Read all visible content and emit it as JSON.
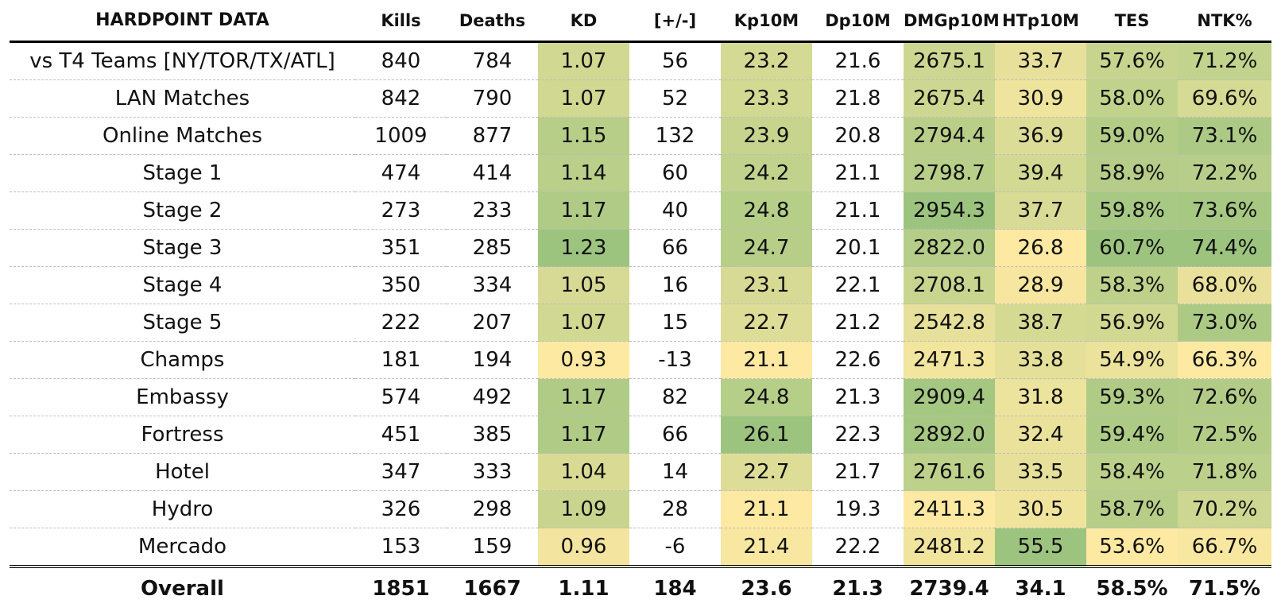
{
  "chart_data": {
    "type": "table",
    "title": "HARDPOINT DATA",
    "columns": [
      "Kills",
      "Deaths",
      "KD",
      "[+/-]",
      "Kp10M",
      "Dp10M",
      "DMGp10M",
      "HTp10M",
      "TES",
      "NTK%"
    ],
    "heatmap_columns": [
      "KD",
      "Kp10M",
      "DMGp10M",
      "HTp10M",
      "TES",
      "NTK%"
    ],
    "color_scale": {
      "low": "#fde9a2",
      "high": "#9cc47f"
    },
    "rows": [
      {
        "label": "vs T4 Teams [NY/TOR/TX/ATL]",
        "values": [
          "840",
          "784",
          "1.07",
          "56",
          "23.2",
          "21.6",
          "2675.1",
          "33.7",
          "57.6%",
          "71.2%"
        ]
      },
      {
        "label": "LAN Matches",
        "values": [
          "842",
          "790",
          "1.07",
          "52",
          "23.3",
          "21.8",
          "2675.4",
          "30.9",
          "58.0%",
          "69.6%"
        ]
      },
      {
        "label": "Online Matches",
        "values": [
          "1009",
          "877",
          "1.15",
          "132",
          "23.9",
          "20.8",
          "2794.4",
          "36.9",
          "59.0%",
          "73.1%"
        ]
      },
      {
        "label": "Stage 1",
        "values": [
          "474",
          "414",
          "1.14",
          "60",
          "24.2",
          "21.1",
          "2798.7",
          "39.4",
          "58.9%",
          "72.2%"
        ]
      },
      {
        "label": "Stage 2",
        "values": [
          "273",
          "233",
          "1.17",
          "40",
          "24.8",
          "21.1",
          "2954.3",
          "37.7",
          "59.8%",
          "73.6%"
        ]
      },
      {
        "label": "Stage 3",
        "values": [
          "351",
          "285",
          "1.23",
          "66",
          "24.7",
          "20.1",
          "2822.0",
          "26.8",
          "60.7%",
          "74.4%"
        ]
      },
      {
        "label": "Stage 4",
        "values": [
          "350",
          "334",
          "1.05",
          "16",
          "23.1",
          "22.1",
          "2708.1",
          "28.9",
          "58.3%",
          "68.0%"
        ]
      },
      {
        "label": "Stage 5",
        "values": [
          "222",
          "207",
          "1.07",
          "15",
          "22.7",
          "21.2",
          "2542.8",
          "38.7",
          "56.9%",
          "73.0%"
        ]
      },
      {
        "label": "Champs",
        "values": [
          "181",
          "194",
          "0.93",
          "-13",
          "21.1",
          "22.6",
          "2471.3",
          "33.8",
          "54.9%",
          "66.3%"
        ]
      },
      {
        "label": "Embassy",
        "values": [
          "574",
          "492",
          "1.17",
          "82",
          "24.8",
          "21.3",
          "2909.4",
          "31.8",
          "59.3%",
          "72.6%"
        ]
      },
      {
        "label": "Fortress",
        "values": [
          "451",
          "385",
          "1.17",
          "66",
          "26.1",
          "22.3",
          "2892.0",
          "32.4",
          "59.4%",
          "72.5%"
        ]
      },
      {
        "label": "Hotel",
        "values": [
          "347",
          "333",
          "1.04",
          "14",
          "22.7",
          "21.7",
          "2761.6",
          "33.5",
          "58.4%",
          "71.8%"
        ]
      },
      {
        "label": "Hydro",
        "values": [
          "326",
          "298",
          "1.09",
          "28",
          "21.1",
          "19.3",
          "2411.3",
          "30.5",
          "58.7%",
          "70.2%"
        ]
      },
      {
        "label": "Mercado",
        "values": [
          "153",
          "159",
          "0.96",
          "-6",
          "21.4",
          "22.2",
          "2481.2",
          "55.5",
          "53.6%",
          "66.7%"
        ]
      }
    ],
    "overall": {
      "label": "Overall",
      "values": [
        "1851",
        "1667",
        "1.11",
        "184",
        "23.6",
        "21.3",
        "2739.4",
        "34.1",
        "58.5%",
        "71.5%"
      ]
    }
  }
}
